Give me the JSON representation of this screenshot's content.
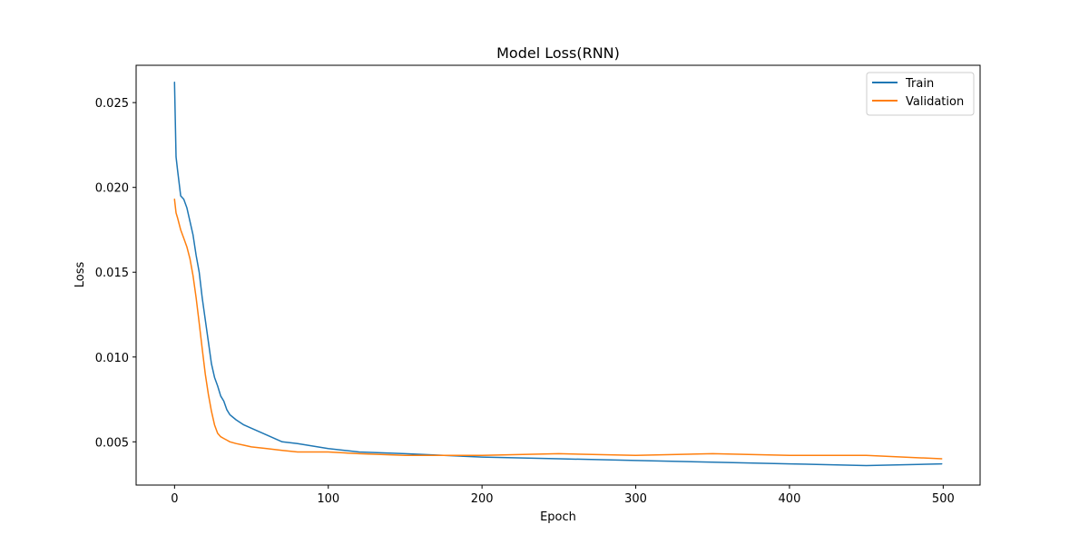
{
  "chart_data": {
    "type": "line",
    "title": "Model Loss(RNN)",
    "xlabel": "Epoch",
    "ylabel": "Loss",
    "xlim": [
      -25,
      524
    ],
    "ylim": [
      0.00245,
      0.0272
    ],
    "xticks": [
      0,
      100,
      200,
      300,
      400,
      500
    ],
    "yticks": [
      0.005,
      0.01,
      0.015,
      0.02,
      0.025
    ],
    "ytick_labels": [
      "0.005",
      "0.010",
      "0.015",
      "0.020",
      "0.025"
    ],
    "grid": false,
    "legend_position": "top-right",
    "series": [
      {
        "name": "Train",
        "color": "#1f77b4",
        "x": [
          0,
          1,
          2,
          4,
          6,
          8,
          10,
          12,
          14,
          16,
          18,
          20,
          22,
          24,
          26,
          28,
          30,
          32,
          34,
          36,
          40,
          45,
          50,
          60,
          70,
          80,
          100,
          120,
          150,
          200,
          250,
          300,
          350,
          400,
          450,
          499
        ],
        "values": [
          0.0262,
          0.0218,
          0.021,
          0.0195,
          0.0193,
          0.0188,
          0.018,
          0.0172,
          0.016,
          0.015,
          0.0135,
          0.0122,
          0.0109,
          0.0096,
          0.0088,
          0.0083,
          0.0077,
          0.0074,
          0.0069,
          0.0066,
          0.0063,
          0.006,
          0.0058,
          0.0054,
          0.005,
          0.0049,
          0.0046,
          0.0044,
          0.0043,
          0.0041,
          0.004,
          0.0039,
          0.0038,
          0.0037,
          0.0036,
          0.0037
        ]
      },
      {
        "name": "Validation",
        "color": "#ff7f0e",
        "x": [
          0,
          1,
          2,
          4,
          6,
          8,
          10,
          12,
          14,
          16,
          18,
          20,
          22,
          24,
          26,
          28,
          30,
          32,
          34,
          36,
          40,
          45,
          50,
          60,
          70,
          80,
          100,
          120,
          150,
          200,
          250,
          300,
          350,
          400,
          450,
          499
        ],
        "values": [
          0.0193,
          0.0185,
          0.0182,
          0.0175,
          0.017,
          0.0165,
          0.0158,
          0.0148,
          0.0135,
          0.012,
          0.0105,
          0.009,
          0.0078,
          0.0068,
          0.006,
          0.0055,
          0.0053,
          0.0052,
          0.0051,
          0.005,
          0.0049,
          0.0048,
          0.0047,
          0.0046,
          0.0045,
          0.0044,
          0.0044,
          0.0043,
          0.0042,
          0.0042,
          0.0043,
          0.0042,
          0.0043,
          0.0042,
          0.0042,
          0.004
        ]
      }
    ]
  }
}
